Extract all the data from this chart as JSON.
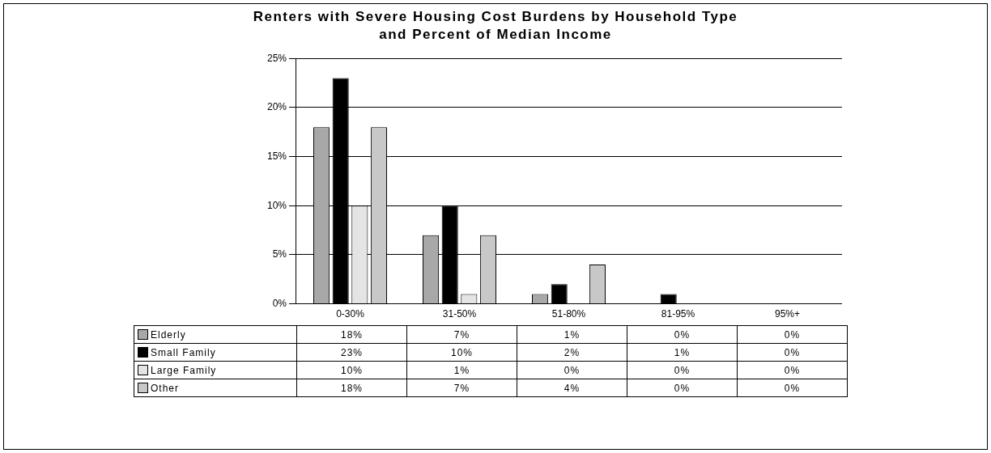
{
  "chart_data": {
    "type": "bar",
    "title": "Renters with Severe Housing Cost Burdens by Household Type and Percent of Median Income",
    "categories": [
      "0-30%",
      "31-50%",
      "51-80%",
      "81-95%",
      "95%+"
    ],
    "series": [
      {
        "name": "Elderly",
        "color": "#a8a8a8",
        "values": [
          18,
          7,
          1,
          0,
          0
        ],
        "value_labels": [
          "18%",
          "7%",
          "1%",
          "0%",
          "0%"
        ]
      },
      {
        "name": "Small Family",
        "color": "#000000",
        "values": [
          23,
          10,
          2,
          1,
          0
        ],
        "value_labels": [
          "23%",
          "10%",
          "2%",
          "1%",
          "0%"
        ]
      },
      {
        "name": "Large Family",
        "color": "#e4e4e4",
        "values": [
          10,
          1,
          0,
          0,
          0
        ],
        "value_labels": [
          "10%",
          "1%",
          "0%",
          "0%",
          "0%"
        ]
      },
      {
        "name": "Other",
        "color": "#c8c8c8",
        "values": [
          18,
          7,
          4,
          0,
          0
        ],
        "value_labels": [
          "18%",
          "7%",
          "4%",
          "0%",
          "0%"
        ]
      }
    ],
    "ylim": [
      0,
      25
    ],
    "yticks": [
      {
        "value": 0,
        "label": "0%"
      },
      {
        "value": 5,
        "label": "5%"
      },
      {
        "value": 10,
        "label": "10%"
      },
      {
        "value": 15,
        "label": "15%"
      },
      {
        "value": 20,
        "label": "20%"
      },
      {
        "value": 25,
        "label": "25%"
      }
    ],
    "grid": "y",
    "legend": "bottom"
  }
}
